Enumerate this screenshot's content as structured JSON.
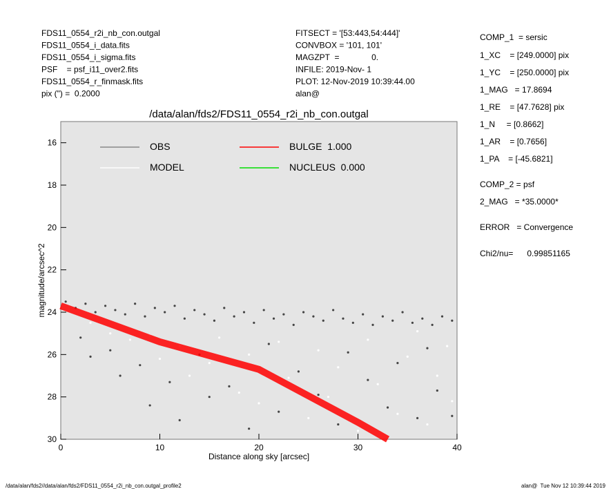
{
  "header": {
    "left": [
      "FDS11_0554_r2i_nb_con.outgal",
      "FDS11_0554_i_data.fits",
      "FDS11_0554_i_sigma.fits",
      "PSF    = psf_i11_over2.fits",
      "FDS11_0554_r_finmask.fits",
      "pix (\") =  0.2000"
    ],
    "middle": [
      "FITSECT = '[53:443,54:444]'",
      "CONVBOX = '101, 101'",
      "MAGZPT  =              0.",
      "INFILE: 2019-Nov- 1",
      "PLOT: 12-Nov-2019 10:39:44.00",
      "alan@"
    ],
    "right": [
      "COMP_1  = sersic",
      "1_XC    = [249.0000] pix",
      "1_YC    = [250.0000] pix",
      "1_MAG   = 17.8694",
      "1_RE    = [47.7628] pix",
      "1_N     = [0.8662]",
      "1_AR    = [0.7656]",
      "1_PA    = [-45.6821]",
      "COMP_2 = psf",
      "2_MAG   = *35.0000*",
      "ERROR   = Convergence",
      "Chi2/nu=      0.99851165"
    ]
  },
  "footer": {
    "left": "/data/alan/fds2//data/alan/fds2/FDS11_0554_r2i_nb_con.outgal_profile2",
    "right": "alan@  Tue Nov 12 10:39:44 2019"
  },
  "chart_data": {
    "type": "scatter",
    "title": "/data/alan/fds2/FDS11_0554_r2i_nb_con.outgal",
    "xlabel": "Distance along sky [arcsec]",
    "ylabel": "magnitude/arcsec^2",
    "xlim": [
      0,
      40
    ],
    "xticks": [
      0,
      10,
      20,
      30,
      40
    ],
    "ylim": [
      15,
      30
    ],
    "yticks": [
      16,
      18,
      20,
      22,
      24,
      26,
      28,
      30
    ],
    "y_inverted": true,
    "series": [
      {
        "name": "OBS",
        "color": "#444444",
        "legend_color": "#888888",
        "kind": "points",
        "x": [
          0.5,
          1.5,
          2.5,
          3.5,
          4.5,
          5.5,
          6.5,
          7.5,
          8.5,
          9.5,
          10.5,
          11.5,
          12.5,
          13.5,
          14.5,
          15.5,
          16.5,
          17.5,
          18.5,
          19.5,
          20.5,
          21.5,
          22.5,
          23.5,
          24.5,
          25.5,
          26.5,
          27.5,
          28.5,
          29.5,
          30.5,
          31.5,
          32.5,
          33.5,
          34.5,
          35.5,
          36.5,
          37.5,
          38.5,
          39.5,
          2,
          3,
          5,
          6,
          8,
          9,
          11,
          12,
          14,
          15,
          17,
          19,
          21,
          22,
          24,
          26,
          28,
          29,
          31,
          33,
          34,
          36,
          37,
          38,
          39.5
        ],
        "values": [
          23.5,
          23.8,
          23.6,
          24.0,
          23.7,
          23.9,
          24.1,
          23.6,
          24.2,
          23.8,
          24.0,
          23.7,
          24.3,
          23.9,
          24.1,
          24.4,
          23.8,
          24.2,
          24.0,
          24.5,
          23.9,
          24.3,
          24.1,
          24.6,
          24.0,
          24.2,
          24.4,
          23.9,
          24.3,
          24.5,
          24.1,
          24.6,
          24.2,
          24.4,
          24.0,
          24.5,
          24.3,
          24.6,
          24.2,
          24.4,
          25.2,
          26.1,
          25.8,
          27.0,
          26.5,
          28.4,
          27.3,
          29.1,
          26.0,
          28.0,
          27.5,
          29.5,
          25.5,
          28.7,
          26.8,
          27.9,
          29.3,
          25.9,
          27.2,
          28.5,
          26.4,
          29.0,
          25.7,
          27.7,
          28.9
        ]
      },
      {
        "name": "MODEL",
        "color": "#ffffff",
        "kind": "points",
        "x": [
          3,
          5,
          7,
          9,
          10,
          12,
          13,
          15,
          16,
          18,
          19,
          20,
          22,
          23,
          25,
          26,
          27,
          28,
          30,
          31,
          32,
          34,
          35,
          36,
          37,
          38,
          39,
          39.5
        ],
        "values": [
          24.5,
          25.0,
          25.3,
          25.1,
          26.2,
          25.6,
          27.0,
          26.4,
          25.2,
          27.8,
          26.0,
          28.3,
          25.4,
          27.1,
          29.0,
          25.8,
          28.0,
          26.6,
          29.6,
          25.3,
          27.4,
          28.8,
          26.1,
          24.9,
          29.3,
          27.0,
          25.6,
          28.2
        ]
      },
      {
        "name": "BULGE  1.000",
        "color": "#ff0000",
        "kind": "line",
        "x": [
          0,
          10,
          20,
          30,
          33
        ],
        "values": [
          23.7,
          25.4,
          26.7,
          29.2,
          30
        ]
      },
      {
        "name": "NUCLEUS  0.000",
        "color": "#00dd00",
        "kind": "line",
        "x": [],
        "values": []
      }
    ]
  }
}
